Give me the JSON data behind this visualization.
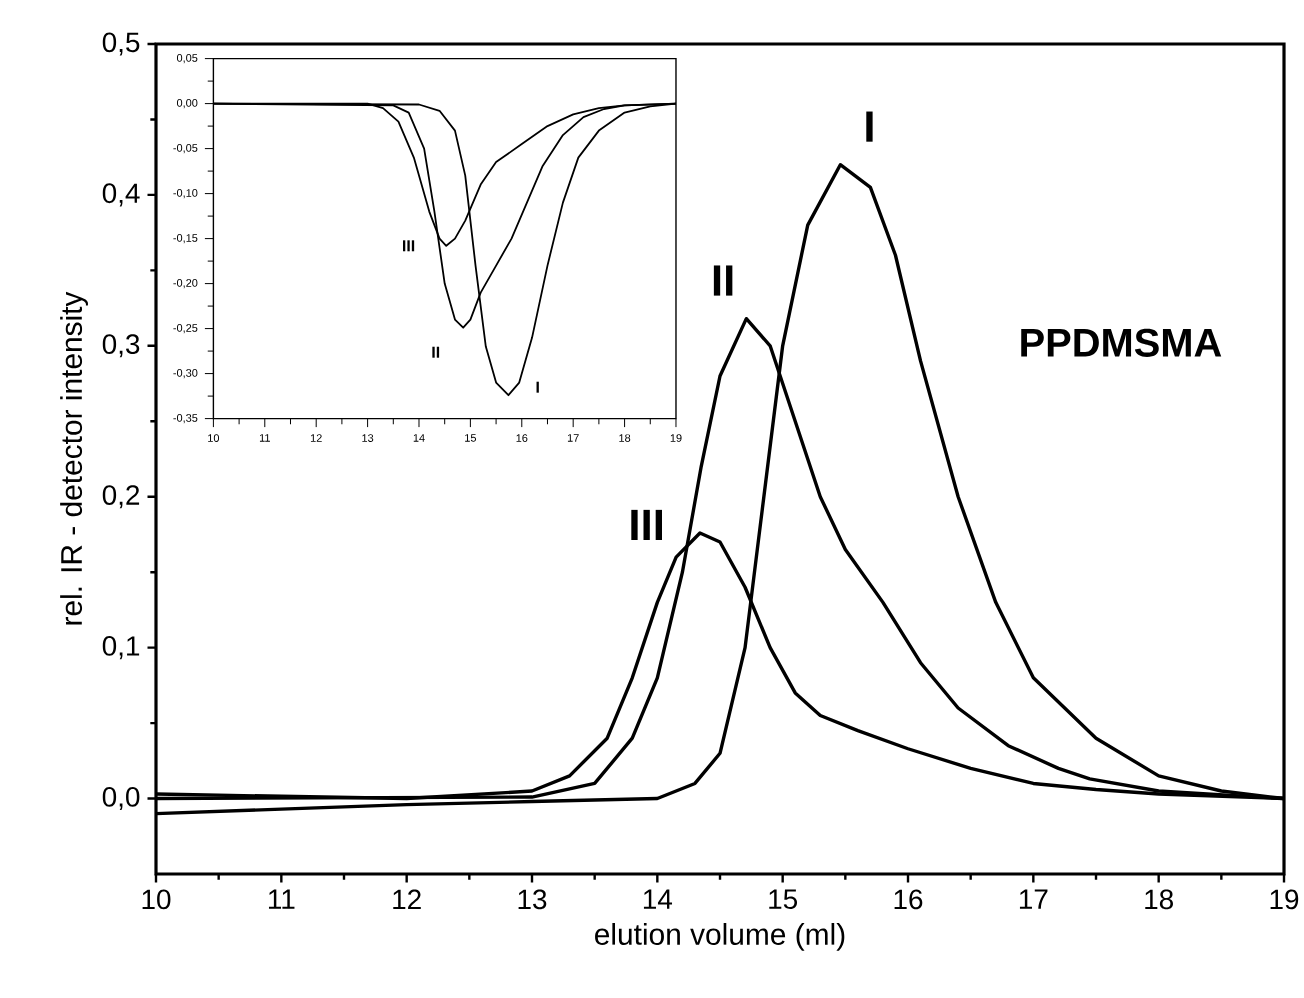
{
  "chart_data": [
    {
      "type": "line",
      "xlabel": "elution volume (ml)",
      "ylabel": "rel. IR - detector intensity",
      "annotations": [
        "PPDMSMA"
      ],
      "line_style": "solid",
      "xlim": [
        10,
        19
      ],
      "ylim": [
        -0.05,
        0.5
      ],
      "xticks": [
        10,
        11,
        12,
        13,
        14,
        15,
        16,
        17,
        18,
        19
      ],
      "yticks": [
        {
          "value": 0,
          "label": "0,0"
        },
        {
          "value": 0.1,
          "label": "0,1"
        },
        {
          "value": 0.2,
          "label": "0,2"
        },
        {
          "value": 0.3,
          "label": "0,3"
        },
        {
          "value": 0.4,
          "label": "0,4"
        },
        {
          "value": 0.5,
          "label": "0,5"
        }
      ],
      "series": [
        {
          "name": "I",
          "color": "#000000",
          "x": [
            10,
            11,
            12,
            13,
            14,
            14.3,
            14.5,
            14.7,
            14.85,
            15.0,
            15.2,
            15.46,
            15.7,
            15.9,
            16.1,
            16.4,
            16.7,
            17.0,
            17.5,
            18,
            18.5,
            19
          ],
          "values": [
            -0.01,
            -0.007,
            -0.004,
            -0.002,
            0.0,
            0.01,
            0.03,
            0.1,
            0.2,
            0.3,
            0.38,
            0.42,
            0.405,
            0.36,
            0.29,
            0.2,
            0.13,
            0.08,
            0.04,
            0.015,
            0.005,
            0.0
          ]
        },
        {
          "name": "II",
          "color": "#000000",
          "x": [
            10,
            13,
            13.5,
            13.8,
            14.0,
            14.2,
            14.35,
            14.5,
            14.71,
            14.9,
            15.1,
            15.3,
            15.5,
            15.8,
            16.1,
            16.4,
            16.8,
            17.2,
            17.45,
            18,
            19
          ],
          "values": [
            0.0,
            0.001,
            0.01,
            0.04,
            0.08,
            0.15,
            0.22,
            0.28,
            0.318,
            0.3,
            0.25,
            0.2,
            0.165,
            0.13,
            0.09,
            0.06,
            0.035,
            0.02,
            0.013,
            0.005,
            0.0
          ]
        },
        {
          "name": "III",
          "color": "#000000",
          "x": [
            10,
            12,
            13,
            13.3,
            13.6,
            13.8,
            14.0,
            14.15,
            14.34,
            14.5,
            14.7,
            14.9,
            15.1,
            15.3,
            15.6,
            16,
            16.5,
            17,
            17.5,
            18,
            19
          ],
          "values": [
            0.003,
            0.0,
            0.005,
            0.015,
            0.04,
            0.08,
            0.13,
            0.16,
            0.176,
            0.17,
            0.14,
            0.1,
            0.07,
            0.055,
            0.045,
            0.033,
            0.02,
            0.01,
            0.006,
            0.003,
            0.0
          ]
        }
      ]
    },
    {
      "type": "line",
      "line_style": "solid",
      "xlim": [
        10,
        19
      ],
      "ylim": [
        -0.35,
        0.05
      ],
      "xticks": [
        10,
        11,
        12,
        13,
        14,
        15,
        16,
        17,
        18,
        19
      ],
      "yticks": [
        {
          "value": -0.35,
          "label": "-0,35"
        },
        {
          "value": -0.3,
          "label": "-0,30"
        },
        {
          "value": -0.25,
          "label": "-0,25"
        },
        {
          "value": -0.2,
          "label": "-0,20"
        },
        {
          "value": -0.15,
          "label": "-0,15"
        },
        {
          "value": -0.1,
          "label": "-0,10"
        },
        {
          "value": -0.05,
          "label": "-0,05"
        },
        {
          "value": 0,
          "label": "0,00"
        },
        {
          "value": 0.05,
          "label": "0,05"
        }
      ],
      "series": [
        {
          "name": "I",
          "color": "#000000",
          "x": [
            10,
            14,
            14.4,
            14.7,
            14.9,
            15.1,
            15.3,
            15.5,
            15.74,
            15.95,
            16.2,
            16.5,
            16.8,
            17.1,
            17.5,
            18,
            18.5,
            19
          ],
          "values": [
            0.0,
            -0.001,
            -0.008,
            -0.03,
            -0.08,
            -0.18,
            -0.27,
            -0.31,
            -0.324,
            -0.31,
            -0.26,
            -0.18,
            -0.11,
            -0.06,
            -0.03,
            -0.01,
            -0.003,
            0.0
          ]
        },
        {
          "name": "II",
          "color": "#000000",
          "x": [
            10,
            13.5,
            13.8,
            14.1,
            14.3,
            14.5,
            14.7,
            14.86,
            15.0,
            15.2,
            15.5,
            15.8,
            16.1,
            16.4,
            16.8,
            17.2,
            17.6,
            18,
            19
          ],
          "values": [
            0.0,
            -0.002,
            -0.01,
            -0.05,
            -0.12,
            -0.2,
            -0.24,
            -0.249,
            -0.24,
            -0.21,
            -0.18,
            -0.15,
            -0.11,
            -0.07,
            -0.035,
            -0.015,
            -0.006,
            -0.002,
            0.0
          ]
        },
        {
          "name": "III",
          "color": "#000000",
          "x": [
            10,
            13,
            13.3,
            13.6,
            13.9,
            14.2,
            14.4,
            14.53,
            14.7,
            14.9,
            15.2,
            15.5,
            16,
            16.5,
            17,
            17.5,
            18,
            19
          ],
          "values": [
            0.0,
            0.0,
            -0.005,
            -0.02,
            -0.06,
            -0.12,
            -0.15,
            -0.158,
            -0.15,
            -0.13,
            -0.09,
            -0.065,
            -0.045,
            -0.025,
            -0.012,
            -0.005,
            -0.002,
            0.0
          ]
        }
      ]
    }
  ]
}
